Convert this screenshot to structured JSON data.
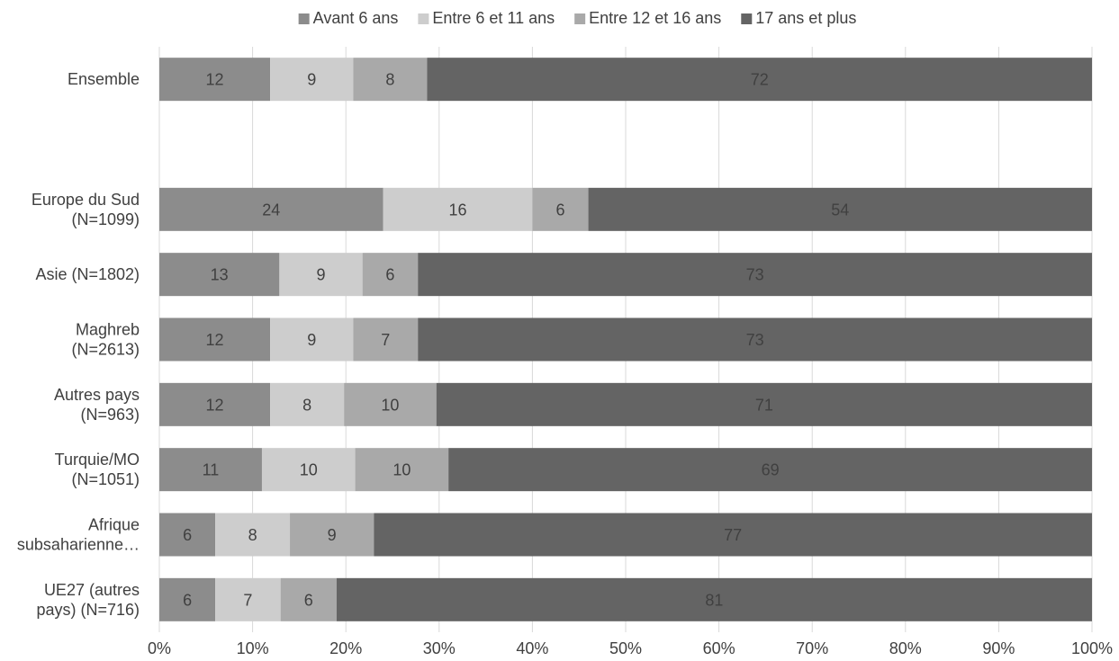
{
  "chart_data": {
    "type": "bar",
    "orientation": "horizontal",
    "stacked": true,
    "percent_stacked": true,
    "title": "",
    "xlabel": "",
    "ylabel": "",
    "xlim": [
      0,
      100
    ],
    "x_ticks": [
      "0%",
      "10%",
      "20%",
      "30%",
      "40%",
      "50%",
      "60%",
      "70%",
      "80%",
      "90%",
      "100%"
    ],
    "grid": "vertical",
    "legend_position": "top",
    "categories": [
      {
        "label_lines": [
          "Ensemble"
        ],
        "values": [
          12,
          9,
          8,
          72
        ]
      },
      {
        "label_lines": [],
        "values": null
      },
      {
        "label_lines": [
          "Europe du Sud",
          "(N=1099)"
        ],
        "values": [
          24,
          16,
          6,
          54
        ]
      },
      {
        "label_lines": [
          "Asie (N=1802)"
        ],
        "values": [
          13,
          9,
          6,
          73
        ]
      },
      {
        "label_lines": [
          "Maghreb",
          "(N=2613)"
        ],
        "values": [
          12,
          9,
          7,
          73
        ]
      },
      {
        "label_lines": [
          "Autres pays",
          "(N=963)"
        ],
        "values": [
          12,
          8,
          10,
          71
        ]
      },
      {
        "label_lines": [
          "Turquie/MO",
          "(N=1051)"
        ],
        "values": [
          11,
          10,
          10,
          69
        ]
      },
      {
        "label_lines": [
          "Afrique",
          "subsaharienne…"
        ],
        "values": [
          6,
          8,
          9,
          77
        ]
      },
      {
        "label_lines": [
          "UE27 (autres",
          "pays) (N=716)"
        ],
        "values": [
          6,
          7,
          6,
          81
        ]
      }
    ],
    "series": [
      {
        "name": "Avant 6 ans",
        "color": "#8c8c8c"
      },
      {
        "name": "Entre 6 et 11 ans",
        "color": "#cdcdcd"
      },
      {
        "name": "Entre 12 et 16 ans",
        "color": "#a9a9a9"
      },
      {
        "name": "17 ans et plus",
        "color": "#646464"
      }
    ]
  }
}
